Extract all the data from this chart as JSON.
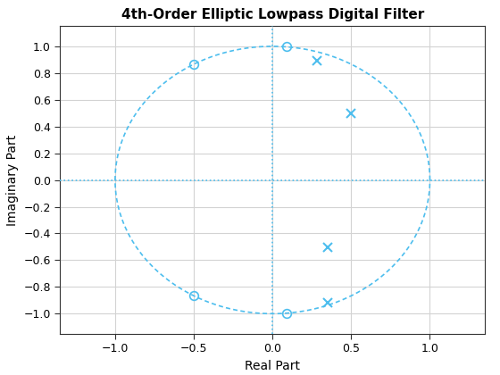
{
  "title": "4th-Order Elliptic Lowpass Digital Filter",
  "xlabel": "Real Part",
  "ylabel": "Imaginary Part",
  "xlim": [
    -1.35,
    1.35
  ],
  "ylim": [
    -1.15,
    1.15
  ],
  "xticks": [
    -1,
    -0.5,
    0,
    0.5,
    1
  ],
  "yticks": [
    -1,
    -0.8,
    -0.6,
    -0.4,
    -0.2,
    0,
    0.2,
    0.4,
    0.6,
    0.8,
    1
  ],
  "circle_color": "#4DBEEE",
  "crosshair_color": "#4DBEEE",
  "zeros_color": "#4DBEEE",
  "poles_color": "#4DBEEE",
  "zeros": [
    [
      -0.5,
      0.866
    ],
    [
      -0.5,
      -0.866
    ],
    [
      0.09,
      0.996
    ],
    [
      0.09,
      -0.996
    ]
  ],
  "poles": [
    [
      0.28,
      0.895
    ],
    [
      0.5,
      0.5
    ],
    [
      0.35,
      -0.505
    ],
    [
      0.35,
      -0.92
    ]
  ],
  "background_color": "#ffffff",
  "grid_color": "#d3d3d3",
  "title_fontsize": 11,
  "label_fontsize": 10
}
